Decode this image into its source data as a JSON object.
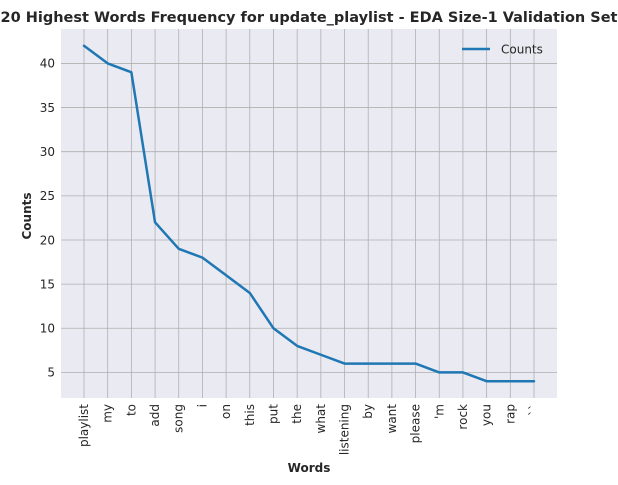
{
  "chart_data": {
    "type": "line",
    "title": "20 Highest Words Frequency for update_playlist - EDA Size-1 Validation Set",
    "xlabel": "Words",
    "ylabel": "Counts",
    "categories": [
      "playlist",
      "my",
      "to",
      "add",
      "song",
      "i",
      "on",
      "this",
      "put",
      "the",
      "what",
      "listening",
      "by",
      "want",
      "please",
      "'m",
      "rock",
      "you",
      "rap",
      "``"
    ],
    "series": [
      {
        "name": "Counts",
        "color": "#1f77b4",
        "values": [
          42,
          40,
          39,
          22,
          19,
          18,
          16,
          14,
          10,
          8,
          7,
          6,
          6,
          6,
          6,
          5,
          5,
          4,
          4,
          4
        ]
      }
    ],
    "yticks": [
      5,
      10,
      15,
      20,
      25,
      30,
      35,
      40
    ],
    "ylim": [
      2.1,
      43.9
    ],
    "grid": true,
    "legend_position": "top-right",
    "plot_background": "#eaeaf2",
    "grid_color": "#b0b0b0"
  }
}
